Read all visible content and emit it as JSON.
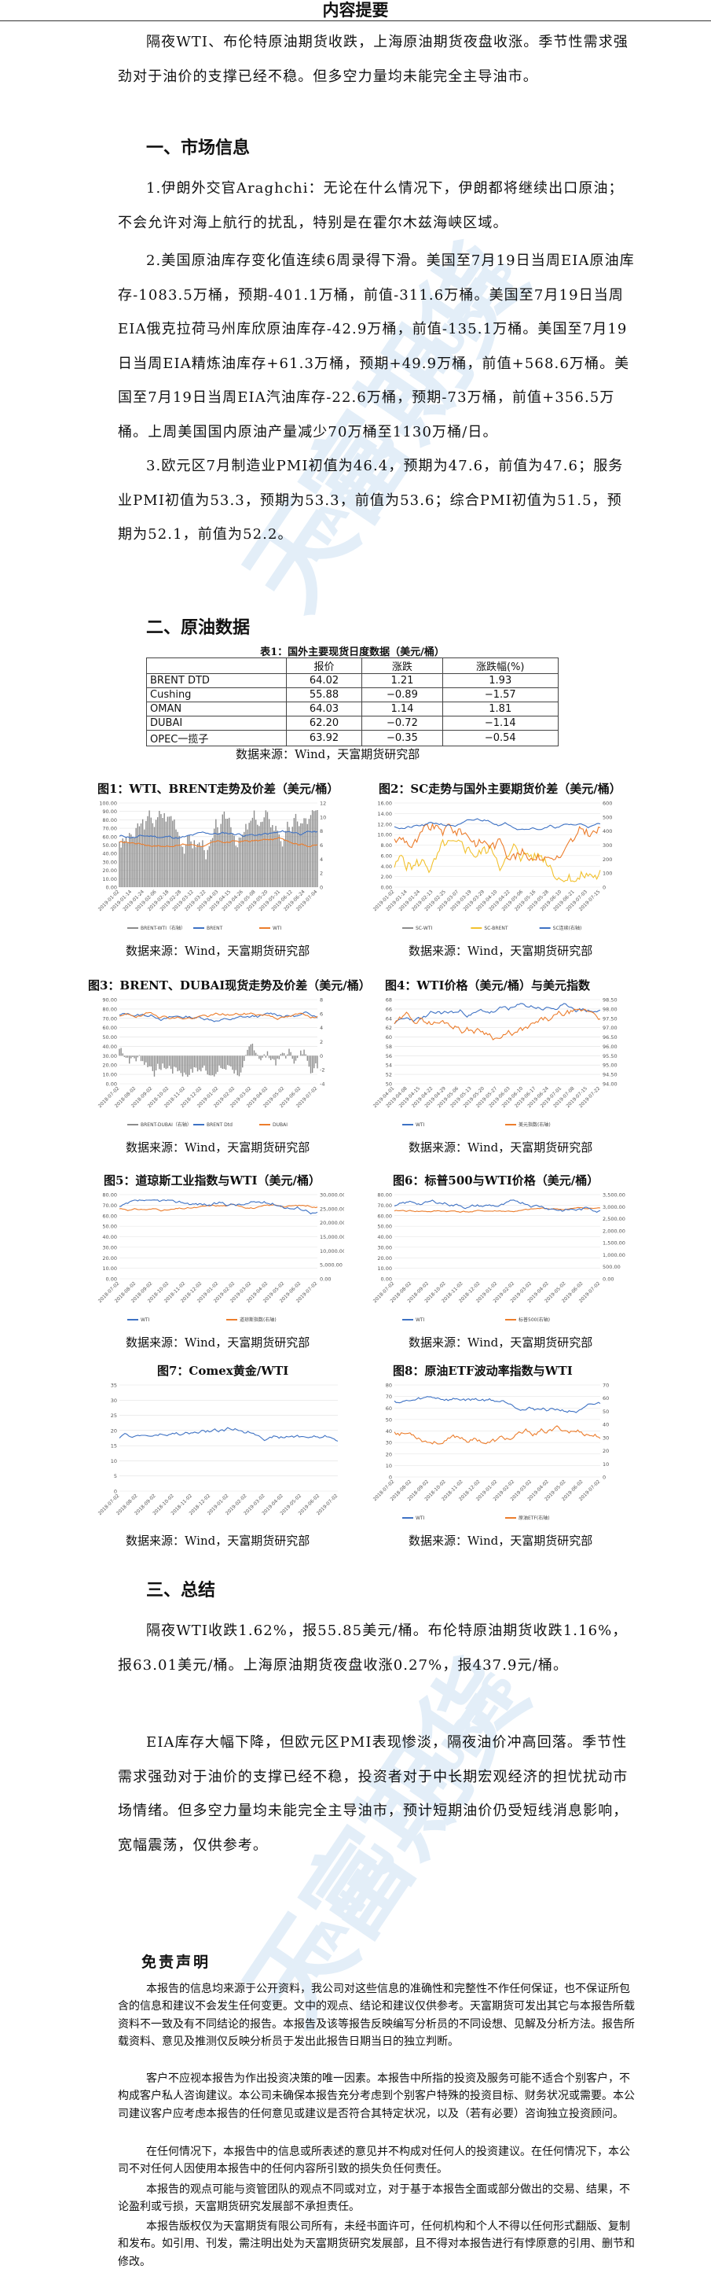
{
  "header": {
    "title": "内容提要"
  },
  "summary": "隔夜WTI、布伦特原油期货收跌，上海原油期货夜盘收涨。季节性需求强劲对于油价的支撑已经不稳。但多空力量均未能完全主导油市。",
  "section1": {
    "title": "一、市场信息",
    "items": [
      "1.伊朗外交官Araghchi：无论在什么情况下，伊朗都将继续出口原油；不会允许对海上航行的扰乱，特别是在霍尔木兹海峡区域。",
      "2.美国原油库存变化值连续6周录得下滑。美国至7月19日当周EIA原油库存-1083.5万桶，预期-401.1万桶，前值-311.6万桶。美国至7月19日当周EIA俄克拉荷马州库欣原油库存-42.9万桶，前值-135.1万桶。美国至7月19日当周EIA精炼油库存+61.3万桶，预期+49.9万桶，前值+568.6万桶。美国至7月19日当周EIA汽油库存-22.6万桶，预期-73万桶，前值+356.5万桶。上周美国国内原油产量减少70万桶至1130万桶/日。",
      "3.欧元区7月制造业PMI初值为46.4，预期为47.6，前值为47.6；服务业PMI初值为53.3，预期为53.3，前值为53.6；综合PMI初值为51.5，预期为52.1，前值为52.2。"
    ]
  },
  "section2": {
    "title": "二、原油数据",
    "table_caption": "表1：国外主要现货日度数据（美元/桶）",
    "table_headers": [
      "",
      "报价",
      "涨跌",
      "涨跌幅(%)"
    ],
    "table_rows": [
      [
        "BRENT DTD",
        "64.02",
        "1.21",
        "1.93"
      ],
      [
        "Cushing",
        "55.88",
        "−0.89",
        "−1.57"
      ],
      [
        "OMAN",
        "64.03",
        "1.14",
        "1.81"
      ],
      [
        "DUBAI",
        "62.20",
        "−0.72",
        "−1.14"
      ],
      [
        "OPEC一揽子",
        "63.92",
        "−0.35",
        "−0.54"
      ]
    ],
    "table_source": "数据来源：Wind，天富期货研究部",
    "figure_source": "数据来源：Wind，天富期货研究部"
  },
  "figures": {
    "f1": {
      "title": "图1：WTI、BRENT走势及价差（美元/桶）",
      "legend": [
        "BRENT-WTI（右轴）",
        "BRENT",
        "WTI"
      ],
      "yleft": [
        "0.00",
        "10.00",
        "20.00",
        "30.00",
        "40.00",
        "50.00",
        "60.00",
        "70.00",
        "80.00",
        "90.00",
        "100.00"
      ],
      "yright": [
        "0",
        "2",
        "4",
        "6",
        "8",
        "10",
        "12"
      ],
      "x": [
        "2019-01-02",
        "2019-01-14",
        "2019-01-24",
        "2019-02-06",
        "2019-02-18",
        "2019-02-28",
        "2019-03-12",
        "2019-03-22",
        "2019-04-03",
        "2019-04-15",
        "2019-04-26",
        "2019-05-08",
        "2019-05-20",
        "2019-05-31",
        "2019-06-12",
        "2019-06-24",
        "2019-07-04"
      ]
    },
    "f2": {
      "title": "图2：SC走势与国外主要期货价差（美元/桶）",
      "legend": [
        "SC-WTI",
        "SC-BRENT",
        "SC连续(右轴)"
      ],
      "yleft": [
        "0.00",
        "2.00",
        "4.00",
        "6.00",
        "8.00",
        "10.00",
        "12.00",
        "14.00",
        "16.00"
      ],
      "yright": [
        "0",
        "100",
        "200",
        "300",
        "400",
        "500",
        "600"
      ],
      "x": [
        "2019-01-02",
        "2019-01-14",
        "2019-01-24",
        "2019-02-13",
        "2019-02-25",
        "2019-03-07",
        "2019-03-19",
        "2019-03-29",
        "2019-04-10",
        "2019-04-22",
        "2019-05-06",
        "2019-05-16",
        "2019-05-28",
        "2019-06-10",
        "2019-06-21",
        "2019-07-03",
        "2019-07-15"
      ]
    },
    "f3": {
      "title": "图3：BRENT、DUBAI现货走势及价差（美元/桶）",
      "legend": [
        "BRENT-DUBAI（右轴）",
        "BRENT Dtd",
        "DUBAI"
      ],
      "yleft": [
        "0.00",
        "10.00",
        "20.00",
        "30.00",
        "40.00",
        "50.00",
        "60.00",
        "70.00",
        "80.00",
        "90.00"
      ],
      "yright": [
        "-4",
        "-2",
        "0",
        "2",
        "4",
        "6",
        "8"
      ],
      "x": [
        "2018-07-02",
        "2018-08-02",
        "2018-09-02",
        "2018-10-02",
        "2018-11-02",
        "2018-12-02",
        "2019-01-02",
        "2019-02-02",
        "2019-03-02",
        "2019-04-02",
        "2019-05-02",
        "2019-06-02",
        "2019-07-02"
      ]
    },
    "f4": {
      "title": "图4：WTI价格（美元/桶）与美元指数",
      "legend": [
        "WTI",
        "美元指数(右轴)"
      ],
      "yleft": [
        "50",
        "52",
        "54",
        "56",
        "58",
        "60",
        "62",
        "64",
        "66",
        "68"
      ],
      "yright": [
        "94.00",
        "94.50",
        "95.00",
        "95.50",
        "96.00",
        "96.50",
        "97.00",
        "97.50",
        "98.00",
        "98.50"
      ],
      "x": [
        "2019-04-01",
        "2019-04-08",
        "2019-04-15",
        "2019-04-22",
        "2019-04-29",
        "2019-05-06",
        "2019-05-13",
        "2019-05-20",
        "2019-05-27",
        "2019-06-03",
        "2019-06-10",
        "2019-06-17",
        "2019-06-24",
        "2019-07-01",
        "2019-07-08",
        "2019-07-15",
        "2019-07-22"
      ]
    },
    "f5": {
      "title": "图5：道琼斯工业指数与WTI（美元/桶）",
      "legend": [
        "WTI",
        "道琼斯指数(右轴)"
      ],
      "yleft": [
        "0.00",
        "10.00",
        "20.00",
        "30.00",
        "40.00",
        "50.00",
        "60.00",
        "70.00",
        "80.00"
      ],
      "yright": [
        "0.00",
        "5,000.00",
        "10,000.00",
        "15,000.00",
        "20,000.00",
        "25,000.00",
        "30,000.00"
      ],
      "x": [
        "2018-07-02",
        "2018-08-02",
        "2018-09-02",
        "2018-10-02",
        "2018-11-02",
        "2018-12-02",
        "2019-01-02",
        "2019-02-02",
        "2019-03-02",
        "2019-04-02",
        "2019-05-02",
        "2019-06-02",
        "2019-07-02"
      ]
    },
    "f6": {
      "title": "图6：标普500与WTI价格（美元/桶）",
      "legend": [
        "WTI",
        "标普500(右轴)"
      ],
      "yleft": [
        "0.00",
        "10.00",
        "20.00",
        "30.00",
        "40.00",
        "50.00",
        "60.00",
        "70.00",
        "80.00"
      ],
      "yright": [
        "0.00",
        "500.00",
        "1,000.00",
        "1,500.00",
        "2,000.00",
        "2,500.00",
        "3,000.00",
        "3,500.00"
      ],
      "x": [
        "2018-07-02",
        "2018-08-02",
        "2018-09-02",
        "2018-10-02",
        "2018-11-02",
        "2018-12-02",
        "2019-01-02",
        "2019-02-02",
        "2019-03-02",
        "2019-04-02",
        "2019-05-02",
        "2019-06-02",
        "2019-07-02"
      ]
    },
    "f7": {
      "title": "图7：Comex黄金/WTI",
      "legend": [],
      "yleft": [
        "0",
        "5",
        "10",
        "15",
        "20",
        "25",
        "30",
        "35"
      ],
      "yright": [],
      "x": [
        "2018-07-02",
        "2018-08-02",
        "2018-09-02",
        "2018-10-02",
        "2018-11-02",
        "2018-12-02",
        "2019-01-02",
        "2019-02-02",
        "2019-03-02",
        "2019-04-02",
        "2019-05-02",
        "2019-06-02",
        "2019-07-02"
      ]
    },
    "f8": {
      "title": "图8：原油ETF波动率指数与WTI",
      "legend": [
        "WTI",
        "原油ETF(右轴)"
      ],
      "yleft": [
        "0",
        "10",
        "20",
        "30",
        "40",
        "50",
        "60",
        "70",
        "80"
      ],
      "yright": [
        "0",
        "10",
        "20",
        "30",
        "40",
        "50",
        "60",
        "70"
      ],
      "x": [
        "2018-07-02",
        "2018-08-02",
        "2018-09-02",
        "2018-10-02",
        "2018-11-02",
        "2018-12-02",
        "2019-01-02",
        "2019-02-02",
        "2019-03-02",
        "2019-04-02",
        "2019-05-02",
        "2019-06-02",
        "2019-07-02"
      ]
    }
  },
  "section3": {
    "title": "三、总结",
    "paragraphs": [
      "隔夜WTI收跌1.62%，报55.85美元/桶。布伦特原油期货收跌1.16%，报63.01美元/桶。上海原油期货夜盘收涨0.27%，报437.9元/桶。",
      "EIA库存大幅下降，但欧元区PMI表现惨淡，隔夜油价冲高回落。季节性需求强劲对于油价的支撑已经不稳，投资者对于中长期宏观经济的担忧扰动市场情绪。但多空力量均未能完全主导油市，预计短期油价仍受短线消息影响，宽幅震荡，仅供参考。"
    ]
  },
  "disclaimer": {
    "title": "免责声明",
    "paragraphs": [
      "本报告的信息均来源于公开资料，我公司对这些信息的准确性和完整性不作任何保证，也不保证所包含的信息和建议不会发生任何变更。文中的观点、结论和建议仅供参考。天富期货可发出其它与本报告所载资料不一致及有不同结论的报告。本报告及该等报告反映编写分析员的不同设想、见解及分析方法。报告所载资料、意见及推测仅反映分析员于发出此报告日期当日的独立判断。",
      "客户不应视本报告为作出投资决策的唯一因素。本报告中所指的投资及服务可能不适合个别客户，不构成客户私人咨询建议。本公司未确保本报告充分考虑到个别客户特殊的投资目标、财务状况或需要。本公司建议客户应考虑本报告的任何意见或建议是否符合其特定状况，以及（若有必要）咨询独立投资顾问。",
      "在任何情况下，本报告中的信息或所表述的意见并不构成对任何人的投资建议。在任何情况下，本公司不对任何人因使用本报告中的任何内容所引致的损失负任何责任。",
      "本报告的观点可能与资管团队的观点不同或对立，对于基于本报告全面或部分做出的交易、结果，不论盈利或亏损，天富期货研究发展部不承担责任。",
      "本报告版权仅为天富期货有限公司所有，未经书面许可，任何机构和个人不得以任何形式翻版、复制和发布。如引用、刊发，需注明出处为天富期货研究发展部，且不得对本报告进行有悖原意的引用、删节和修改。"
    ]
  },
  "watermark": {
    "cn": "天富期货",
    "en": "TIANFU FUTURES"
  },
  "colors": {
    "blue": "#3e72c4",
    "orange": "#ec7d2c",
    "gray": "#8c8c8c",
    "yellow": "#f2c12e",
    "watermark": "#e3eef8"
  }
}
